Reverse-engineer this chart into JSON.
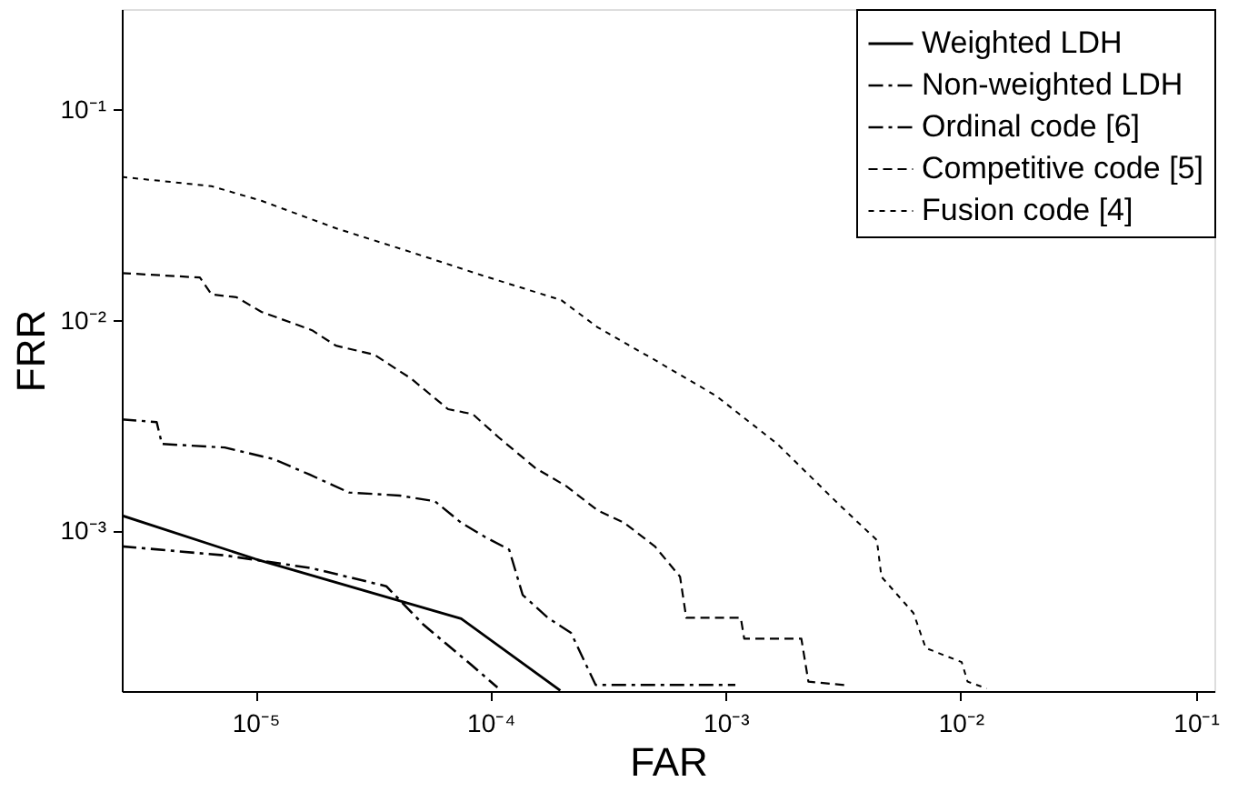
{
  "chart_data": {
    "type": "line",
    "xlabel": "FAR",
    "ylabel": "FRR",
    "log": "xy",
    "grid": false,
    "legend": "top right",
    "marker": "none",
    "xlim": [
      2.7e-06,
      0.12
    ],
    "ylim": [
      0.000175,
      0.3
    ],
    "xticks": [
      {
        "value": 1e-05,
        "label": "10⁻⁵"
      },
      {
        "value": 0.0001,
        "label": "10⁻⁴"
      },
      {
        "value": 0.001,
        "label": "10⁻³"
      },
      {
        "value": 0.01,
        "label": "10⁻²"
      },
      {
        "value": 0.1,
        "label": "10⁻¹"
      }
    ],
    "yticks": [
      {
        "value": 0.001,
        "label": "10⁻³"
      },
      {
        "value": 0.01,
        "label": "10⁻²"
      },
      {
        "value": 0.1,
        "label": "10⁻¹"
      }
    ],
    "series": [
      {
        "name": "Weighted LDH",
        "color": "#000000",
        "line_style": "solid",
        "x": [
          2.7e-06,
          1e-05,
          7.5e-05,
          0.000198
        ],
        "values": [
          0.00119,
          0.00074,
          0.000386,
          0.000176
        ]
      },
      {
        "name": "Non-weighted LDH",
        "color": "#000000",
        "line_style": "dashdot",
        "x": [
          2.7e-06,
          7.4e-06,
          1.73e-05,
          3.6e-05,
          5.2e-05,
          8.4e-05,
          0.000107
        ],
        "values": [
          0.00085,
          0.00077,
          0.00067,
          0.00055,
          0.00036,
          0.00023,
          0.000182
        ]
      },
      {
        "name": "Ordinal code [6]",
        "color": "#000000",
        "line_style": "dashdot",
        "x": [
          2.7e-06,
          3.8e-06,
          4e-06,
          7.4e-06,
          1.2e-05,
          1.7e-05,
          2.5e-05,
          4.1e-05,
          5.8e-05,
          7.5e-05,
          9.5e-05,
          0.00012,
          0.000137,
          0.000175,
          0.00022,
          0.00028,
          0.0011
        ],
        "values": [
          0.0034,
          0.0033,
          0.0026,
          0.0025,
          0.0022,
          0.00186,
          0.00153,
          0.00148,
          0.00139,
          0.0011,
          0.00094,
          0.00082,
          0.0005,
          0.00039,
          0.00033,
          0.000187,
          0.000187
        ]
      },
      {
        "name": "Competitive code [5]",
        "color": "#000000",
        "line_style": "dashed",
        "x": [
          2.7e-06,
          5.8e-06,
          6.5e-06,
          8.3e-06,
          1.06e-05,
          1.74e-05,
          2.2e-05,
          3.2e-05,
          4.6e-05,
          6.6e-05,
          8.4e-05,
          0.000108,
          0.000155,
          0.00021,
          0.000285,
          0.00037,
          0.0005,
          0.00064,
          0.00068,
          0.00116,
          0.0012,
          0.0021,
          0.00225,
          0.0032
        ],
        "values": [
          0.0168,
          0.016,
          0.0133,
          0.0129,
          0.011,
          0.009,
          0.0076,
          0.0069,
          0.0053,
          0.0038,
          0.0036,
          0.0028,
          0.002,
          0.00164,
          0.00126,
          0.0011,
          0.00085,
          0.00061,
          0.00039,
          0.00039,
          0.00031,
          0.00031,
          0.000194,
          0.000187
        ]
      },
      {
        "name": "Fusion code [4]",
        "color": "#000000",
        "line_style": "dotted",
        "x": [
          2.7e-06,
          6.5e-06,
          1.06e-05,
          2.2e-05,
          4.6e-05,
          9.5e-05,
          0.0002,
          0.000285,
          0.0005,
          0.00091,
          0.00166,
          0.00304,
          0.0044,
          0.0046,
          0.0063,
          0.0071,
          0.0101,
          0.0107,
          0.0129
        ],
        "values": [
          0.048,
          0.0434,
          0.037,
          0.0274,
          0.0211,
          0.0162,
          0.0125,
          0.0093,
          0.0065,
          0.0044,
          0.0026,
          0.00134,
          0.00091,
          0.00061,
          0.00041,
          0.00028,
          0.00024,
          0.000194,
          0.00018
        ]
      }
    ]
  }
}
